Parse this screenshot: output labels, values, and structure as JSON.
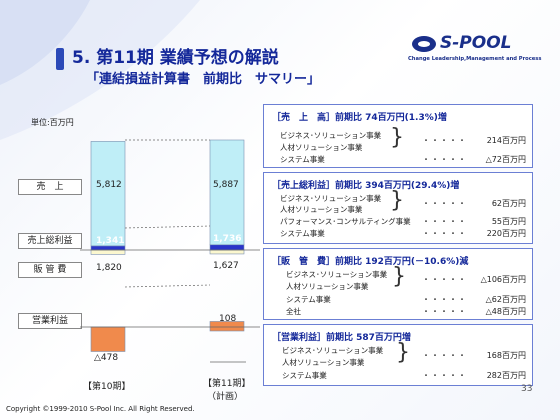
{
  "title": "5. 第11期 業績予想の解説",
  "subtitle": "「連結損益計算書　前期比　サマリー」",
  "logo": {
    "name": "S-POOL",
    "tagline": "Change Leadership,Management and Process"
  },
  "unit_label": "単位:百万円",
  "categories": {
    "sales": "売　上",
    "gross_profit": "売上総利益",
    "sga": "販 管 費",
    "operating": "営業利益"
  },
  "chart_data": {
    "type": "bar",
    "categories": [
      "【第10期】",
      "【第11期】（計画）"
    ],
    "x_labels": {
      "prev": "【第10期】",
      "plan_line1": "【第11期】",
      "plan_line2": "（計画）"
    },
    "series": [
      {
        "name": "売　上",
        "values": [
          5812,
          5887
        ]
      },
      {
        "name": "売上総利益",
        "values": [
          1341,
          1736
        ]
      },
      {
        "name": "販 管 費",
        "values": [
          1820,
          1627
        ]
      },
      {
        "name": "営業利益",
        "values": [
          -478,
          108
        ]
      }
    ],
    "labels": {
      "prev": {
        "sales": "5,812",
        "gross": "1,341",
        "sga": "1,820",
        "op": "△478"
      },
      "plan": {
        "sales": "5,887",
        "gross": "1,736",
        "sga": "1,627",
        "op": "108"
      }
    },
    "colors": {
      "sales": "#bfeef7",
      "gross": "#2a35c9",
      "sga": "#fbf7cf",
      "op": "#f08a4c"
    }
  },
  "boxes": [
    {
      "header": "［売　上　高］前期比 74百万円(1.3%)増",
      "rows": [
        {
          "label": "ビジネス･ソリューション事業",
          "dots": "・・・・・",
          "amount": "214百万円"
        },
        {
          "label": "人材ソリューション事業",
          "dots": "",
          "amount": ""
        },
        {
          "label": "システム事業",
          "dots": "・・・・・",
          "amount": "△72百万円"
        }
      ]
    },
    {
      "header": "［売上総利益］前期比 394百万円(29.4%)増",
      "rows": [
        {
          "label": "ビジネス･ソリューション事業",
          "dots": "・・・・・",
          "amount": "62百万円"
        },
        {
          "label": "人材ソリューション事業",
          "dots": "",
          "amount": ""
        },
        {
          "label": "パフォーマンス･コンサルティング事業",
          "dots": "・・・・・",
          "amount": "55百万円"
        },
        {
          "label": "システム事業",
          "dots": "・・・・・",
          "amount": "220百万円"
        }
      ]
    },
    {
      "header": "［販　管　費］前期比 192百万円(－10.6%)減",
      "rows": [
        {
          "label": "ビジネス･ソリューション事業",
          "dots": "・・・・・",
          "amount": "△106百万円"
        },
        {
          "label": "人材ソリューション事業",
          "dots": "",
          "amount": ""
        },
        {
          "label": "システム事業",
          "dots": "・・・・・",
          "amount": "△62百万円"
        },
        {
          "label": "全社",
          "dots": "・・・・・",
          "amount": "△48百万円"
        }
      ]
    },
    {
      "header": "［営業利益］前期比 587百万円増",
      "rows": [
        {
          "label": "ビジネス･ソリューション事業",
          "dots": "・・・・・",
          "amount": "168百万円"
        },
        {
          "label": "人材ソリューション事業",
          "dots": "",
          "amount": ""
        },
        {
          "label": "システム事業",
          "dots": "・・・・・",
          "amount": "282百万円"
        }
      ]
    }
  ],
  "footer": "Copyright ©1999-2010 S-Pool Inc. All Right Reserved.",
  "page_number": "33"
}
